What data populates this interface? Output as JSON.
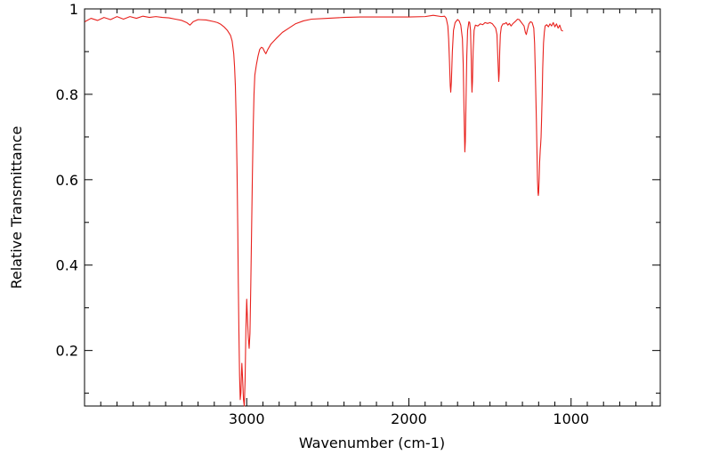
{
  "chart_data": {
    "type": "line",
    "title": "",
    "xlabel": "Wavenumber (cm-1)",
    "ylabel": "Relative Transmittance",
    "x_reversed": true,
    "xlim": [
      4000,
      450
    ],
    "ylim": [
      0.07,
      1.0
    ],
    "x_ticks": [
      3000,
      2000,
      1000
    ],
    "x_tick_labels": [
      "3000",
      "2000",
      "1000"
    ],
    "y_ticks": [
      0.2,
      0.4,
      0.6,
      0.8,
      1.0
    ],
    "y_tick_labels": [
      "0.2",
      "0.4",
      "0.6",
      "0.8",
      "1"
    ],
    "grid": false,
    "legend": "none",
    "line_color": "#e8211d",
    "series": [
      {
        "points": [
          [
            3998,
            0.97
          ],
          [
            3960,
            0.978
          ],
          [
            3920,
            0.973
          ],
          [
            3880,
            0.98
          ],
          [
            3840,
            0.975
          ],
          [
            3800,
            0.982
          ],
          [
            3760,
            0.976
          ],
          [
            3720,
            0.982
          ],
          [
            3680,
            0.978
          ],
          [
            3640,
            0.983
          ],
          [
            3600,
            0.98
          ],
          [
            3560,
            0.982
          ],
          [
            3520,
            0.98
          ],
          [
            3480,
            0.979
          ],
          [
            3440,
            0.976
          ],
          [
            3400,
            0.973
          ],
          [
            3370,
            0.968
          ],
          [
            3350,
            0.962
          ],
          [
            3330,
            0.97
          ],
          [
            3300,
            0.975
          ],
          [
            3250,
            0.974
          ],
          [
            3200,
            0.97
          ],
          [
            3180,
            0.968
          ],
          [
            3160,
            0.964
          ],
          [
            3140,
            0.958
          ],
          [
            3120,
            0.95
          ],
          [
            3100,
            0.938
          ],
          [
            3090,
            0.925
          ],
          [
            3080,
            0.895
          ],
          [
            3075,
            0.865
          ],
          [
            3070,
            0.82
          ],
          [
            3065,
            0.74
          ],
          [
            3060,
            0.63
          ],
          [
            3055,
            0.48
          ],
          [
            3052,
            0.36
          ],
          [
            3048,
            0.24
          ],
          [
            3044,
            0.14
          ],
          [
            3040,
            0.085
          ],
          [
            3036,
            0.1
          ],
          [
            3032,
            0.15
          ],
          [
            3030,
            0.17
          ],
          [
            3026,
            0.14
          ],
          [
            3020,
            0.085
          ],
          [
            3015,
            0.07
          ],
          [
            3010,
            0.13
          ],
          [
            3005,
            0.25
          ],
          [
            3000,
            0.32
          ],
          [
            2996,
            0.28
          ],
          [
            2990,
            0.23
          ],
          [
            2985,
            0.205
          ],
          [
            2980,
            0.24
          ],
          [
            2975,
            0.35
          ],
          [
            2970,
            0.48
          ],
          [
            2965,
            0.61
          ],
          [
            2960,
            0.72
          ],
          [
            2955,
            0.8
          ],
          [
            2950,
            0.845
          ],
          [
            2940,
            0.87
          ],
          [
            2930,
            0.89
          ],
          [
            2920,
            0.905
          ],
          [
            2910,
            0.91
          ],
          [
            2900,
            0.908
          ],
          [
            2890,
            0.9
          ],
          [
            2882,
            0.895
          ],
          [
            2870,
            0.905
          ],
          [
            2850,
            0.918
          ],
          [
            2820,
            0.93
          ],
          [
            2780,
            0.945
          ],
          [
            2740,
            0.955
          ],
          [
            2700,
            0.965
          ],
          [
            2650,
            0.972
          ],
          [
            2600,
            0.976
          ],
          [
            2500,
            0.978
          ],
          [
            2400,
            0.98
          ],
          [
            2300,
            0.981
          ],
          [
            2200,
            0.981
          ],
          [
            2100,
            0.981
          ],
          [
            2000,
            0.981
          ],
          [
            1900,
            0.982
          ],
          [
            1850,
            0.985
          ],
          [
            1800,
            0.982
          ],
          [
            1780,
            0.983
          ],
          [
            1770,
            0.978
          ],
          [
            1760,
            0.96
          ],
          [
            1755,
            0.93
          ],
          [
            1750,
            0.88
          ],
          [
            1745,
            0.82
          ],
          [
            1742,
            0.805
          ],
          [
            1738,
            0.83
          ],
          [
            1732,
            0.9
          ],
          [
            1725,
            0.95
          ],
          [
            1715,
            0.968
          ],
          [
            1700,
            0.975
          ],
          [
            1690,
            0.972
          ],
          [
            1680,
            0.962
          ],
          [
            1670,
            0.93
          ],
          [
            1665,
            0.87
          ],
          [
            1660,
            0.76
          ],
          [
            1657,
            0.7
          ],
          [
            1655,
            0.665
          ],
          [
            1652,
            0.69
          ],
          [
            1648,
            0.78
          ],
          [
            1643,
            0.89
          ],
          [
            1638,
            0.95
          ],
          [
            1630,
            0.97
          ],
          [
            1625,
            0.968
          ],
          [
            1620,
            0.95
          ],
          [
            1616,
            0.89
          ],
          [
            1613,
            0.83
          ],
          [
            1611,
            0.805
          ],
          [
            1608,
            0.83
          ],
          [
            1604,
            0.9
          ],
          [
            1598,
            0.95
          ],
          [
            1590,
            0.962
          ],
          [
            1575,
            0.96
          ],
          [
            1560,
            0.965
          ],
          [
            1545,
            0.963
          ],
          [
            1530,
            0.968
          ],
          [
            1515,
            0.966
          ],
          [
            1500,
            0.968
          ],
          [
            1485,
            0.965
          ],
          [
            1475,
            0.96
          ],
          [
            1465,
            0.955
          ],
          [
            1457,
            0.94
          ],
          [
            1452,
            0.89
          ],
          [
            1448,
            0.85
          ],
          [
            1446,
            0.83
          ],
          [
            1443,
            0.85
          ],
          [
            1440,
            0.9
          ],
          [
            1436,
            0.94
          ],
          [
            1430,
            0.958
          ],
          [
            1420,
            0.965
          ],
          [
            1410,
            0.965
          ],
          [
            1400,
            0.968
          ],
          [
            1390,
            0.962
          ],
          [
            1380,
            0.966
          ],
          [
            1370,
            0.96
          ],
          [
            1360,
            0.965
          ],
          [
            1340,
            0.972
          ],
          [
            1330,
            0.976
          ],
          [
            1320,
            0.975
          ],
          [
            1310,
            0.97
          ],
          [
            1300,
            0.965
          ],
          [
            1290,
            0.96
          ],
          [
            1282,
            0.945
          ],
          [
            1276,
            0.94
          ],
          [
            1270,
            0.95
          ],
          [
            1260,
            0.965
          ],
          [
            1250,
            0.97
          ],
          [
            1240,
            0.968
          ],
          [
            1230,
            0.955
          ],
          [
            1225,
            0.92
          ],
          [
            1221,
            0.86
          ],
          [
            1218,
            0.81
          ],
          [
            1214,
            0.74
          ],
          [
            1210,
            0.66
          ],
          [
            1207,
            0.6
          ],
          [
            1204,
            0.57
          ],
          [
            1202,
            0.563
          ],
          [
            1200,
            0.57
          ],
          [
            1197,
            0.6
          ],
          [
            1194,
            0.64
          ],
          [
            1190,
            0.67
          ],
          [
            1188,
            0.68
          ],
          [
            1185,
            0.7
          ],
          [
            1182,
            0.74
          ],
          [
            1178,
            0.8
          ],
          [
            1175,
            0.86
          ],
          [
            1170,
            0.92
          ],
          [
            1165,
            0.945
          ],
          [
            1160,
            0.96
          ],
          [
            1150,
            0.963
          ],
          [
            1140,
            0.958
          ],
          [
            1130,
            0.965
          ],
          [
            1120,
            0.96
          ],
          [
            1110,
            0.968
          ],
          [
            1100,
            0.958
          ],
          [
            1090,
            0.965
          ],
          [
            1080,
            0.955
          ],
          [
            1070,
            0.962
          ],
          [
            1060,
            0.95
          ],
          [
            1050,
            0.948
          ]
        ]
      }
    ]
  }
}
